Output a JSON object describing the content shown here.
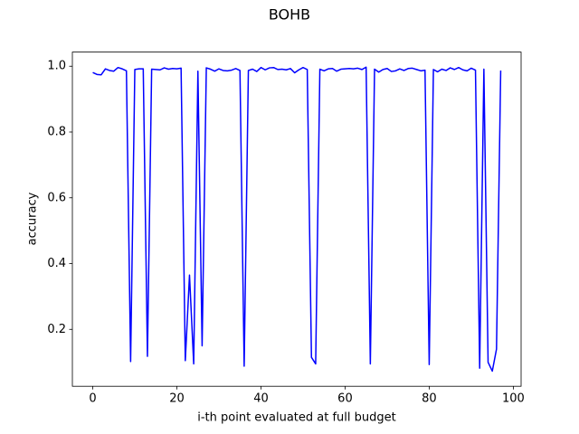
{
  "chart_data": {
    "type": "line",
    "title": "BOHB",
    "xlabel": "i-th point evaluated at full budget",
    "ylabel": "accuracy",
    "x": [
      0,
      1,
      2,
      3,
      4,
      5,
      6,
      7,
      8,
      9,
      10,
      11,
      12,
      13,
      14,
      15,
      16,
      17,
      18,
      19,
      20,
      21,
      22,
      23,
      24,
      25,
      26,
      27,
      28,
      29,
      30,
      31,
      32,
      33,
      34,
      35,
      36,
      37,
      38,
      39,
      40,
      41,
      42,
      43,
      44,
      45,
      46,
      47,
      48,
      49,
      50,
      51,
      52,
      53,
      54,
      55,
      56,
      57,
      58,
      59,
      60,
      61,
      62,
      63,
      64,
      65,
      66,
      67,
      68,
      69,
      70,
      71,
      72,
      73,
      74,
      75,
      76,
      77,
      78,
      79,
      80,
      81,
      82,
      83,
      84,
      85,
      86,
      87,
      88,
      89,
      90,
      91,
      92,
      93,
      94,
      95,
      96,
      97
    ],
    "series": [
      {
        "color": "#0000ff",
        "values": [
          0.981,
          0.975,
          0.974,
          0.992,
          0.987,
          0.985,
          0.996,
          0.992,
          0.986,
          0.102,
          0.99,
          0.992,
          0.992,
          0.118,
          0.991,
          0.99,
          0.989,
          0.995,
          0.991,
          0.993,
          0.992,
          0.994,
          0.105,
          0.365,
          0.095,
          0.985,
          0.15,
          0.995,
          0.991,
          0.985,
          0.992,
          0.987,
          0.986,
          0.988,
          0.993,
          0.987,
          0.088,
          0.987,
          0.991,
          0.984,
          0.996,
          0.989,
          0.995,
          0.996,
          0.99,
          0.991,
          0.989,
          0.993,
          0.98,
          0.989,
          0.996,
          0.99,
          0.115,
          0.095,
          0.991,
          0.986,
          0.992,
          0.993,
          0.985,
          0.991,
          0.992,
          0.993,
          0.992,
          0.994,
          0.99,
          0.997,
          0.095,
          0.991,
          0.982,
          0.99,
          0.993,
          0.984,
          0.986,
          0.992,
          0.987,
          0.993,
          0.994,
          0.99,
          0.986,
          0.988,
          0.093,
          0.99,
          0.983,
          0.991,
          0.987,
          0.995,
          0.99,
          0.996,
          0.989,
          0.986,
          0.994,
          0.988,
          0.082,
          0.991,
          0.1,
          0.073,
          0.14,
          0.987
        ]
      }
    ],
    "xlim": [
      -4.85,
      101.85
    ],
    "ylim": [
      0.027,
      1.043
    ],
    "xticks": [
      0,
      20,
      40,
      60,
      80,
      100
    ],
    "yticks": [
      0.2,
      0.4,
      0.6,
      0.8,
      {
        "value": 1,
        "label": "1.0"
      }
    ],
    "grid": false
  }
}
